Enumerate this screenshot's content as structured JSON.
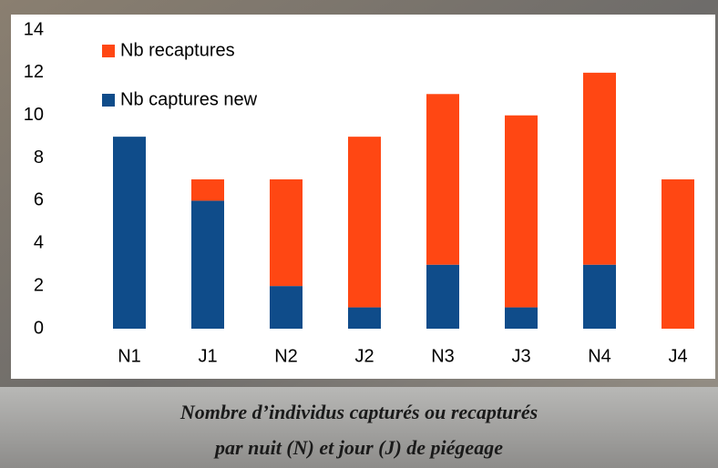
{
  "chart_data": {
    "type": "stacked_bar",
    "categories": [
      "N1",
      "J1",
      "N2",
      "J2",
      "N3",
      "J3",
      "N4",
      "J4"
    ],
    "series": [
      {
        "name": "Nb captures new",
        "color": "#0f4c8a",
        "values": [
          9,
          6,
          2,
          1,
          3,
          1,
          3,
          0
        ]
      },
      {
        "name": "Nb recaptures",
        "color": "#ff4713",
        "values": [
          0,
          1,
          5,
          8,
          8,
          9,
          9,
          7
        ]
      }
    ],
    "ylim": [
      0,
      14
    ],
    "yticks": [
      0,
      2,
      4,
      6,
      8,
      10,
      12,
      14
    ],
    "grid": false,
    "legend": "top-left",
    "caption": [
      "Nombre d’individus capturés ou recapturés",
      "par nuit (N) et jour (J) de piégeage"
    ]
  }
}
